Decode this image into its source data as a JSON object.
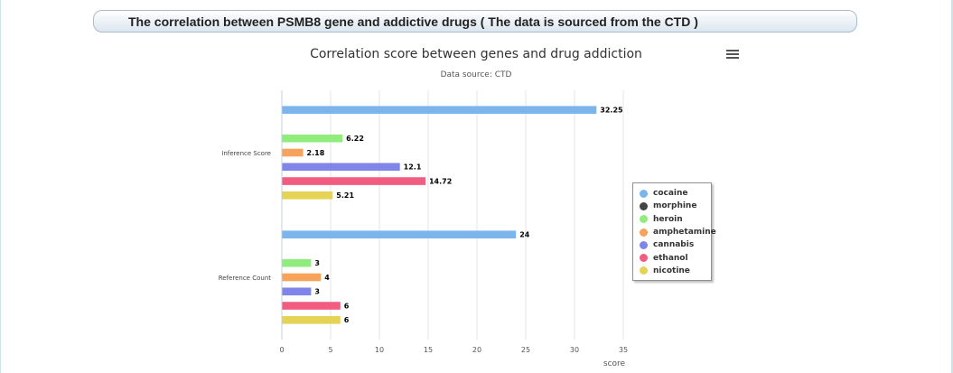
{
  "header": {
    "title": "The correlation between PSMB8 gene and addictive drugs ( The data is sourced from the CTD )"
  },
  "menu": {
    "icon": "hamburger-menu-icon"
  },
  "chart_data": {
    "type": "bar",
    "orientation": "horizontal",
    "title": "Correlation score between genes and drug addiction",
    "subtitle": "Data source: CTD",
    "categories": [
      "Inference Score",
      "Reference Count"
    ],
    "xlabel": "score",
    "ylabel": "",
    "xlim": [
      0,
      35
    ],
    "x_ticks": [
      "0",
      "5",
      "10",
      "15",
      "20",
      "25",
      "30",
      "35"
    ],
    "grid": true,
    "legend_position": "right",
    "series": [
      {
        "name": "cocaine",
        "color": "#7cb5ec",
        "values": [
          32.25,
          24
        ]
      },
      {
        "name": "morphine",
        "color": "#434348",
        "values": [
          null,
          null
        ]
      },
      {
        "name": "heroin",
        "color": "#90ed7d",
        "values": [
          6.22,
          3
        ]
      },
      {
        "name": "amphetamine",
        "color": "#f7a35c",
        "values": [
          2.18,
          4
        ]
      },
      {
        "name": "cannabis",
        "color": "#8085e9",
        "values": [
          12.1,
          3
        ]
      },
      {
        "name": "ethanol",
        "color": "#f15c80",
        "values": [
          14.72,
          6
        ]
      },
      {
        "name": "nicotine",
        "color": "#e4d354",
        "values": [
          5.21,
          6
        ]
      }
    ]
  }
}
